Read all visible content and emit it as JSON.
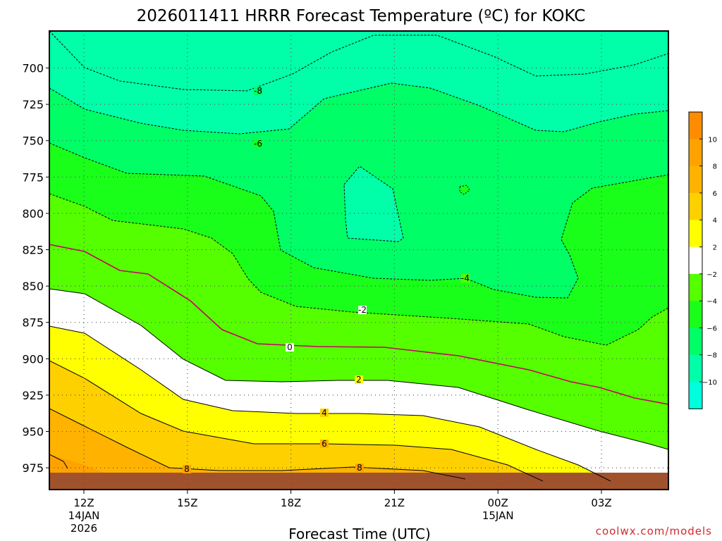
{
  "chart_data": {
    "type": "contour",
    "title": "2026011411 HRRR Forecast Temperature (ºC) for KOKC",
    "xlabel": "Forecast Time (UTC)",
    "ylabel": "",
    "credit": "coolwx.com/models",
    "y_axis": {
      "unit": "hPa",
      "inverted": true,
      "ticks": [
        "700",
        "725",
        "750",
        "775",
        "800",
        "825",
        "850",
        "875",
        "900",
        "925",
        "950",
        "975"
      ]
    },
    "x_axis": {
      "ticks": [
        {
          "label": "12Z",
          "sub1": "14JAN",
          "sub2": "2026"
        },
        {
          "label": "15Z",
          "sub1": "",
          "sub2": ""
        },
        {
          "label": "18Z",
          "sub1": "",
          "sub2": ""
        },
        {
          "label": "21Z",
          "sub1": "",
          "sub2": ""
        },
        {
          "label": "00Z",
          "sub1": "15JAN",
          "sub2": ""
        },
        {
          "label": "03Z",
          "sub1": "",
          "sub2": ""
        }
      ]
    },
    "grid": true,
    "colorbar": {
      "labels": [
        "10",
        "8",
        "6",
        "4",
        "2",
        "−2",
        "−4",
        "−6",
        "−8",
        "−10"
      ],
      "bands": [
        {
          "range": "10 to 12",
          "color": "#ff8c00"
        },
        {
          "range": "8 to 10",
          "color": "#ffa200"
        },
        {
          "range": "6 to 8",
          "color": "#ffb300"
        },
        {
          "range": "4 to 6",
          "color": "#ffd000"
        },
        {
          "range": "2 to 4",
          "color": "#ffff00"
        },
        {
          "range": "-2 to 2",
          "color": "#ffffff"
        },
        {
          "range": "-4 to -2",
          "color": "#55ff00"
        },
        {
          "range": "-6 to -4",
          "color": "#1aff1a"
        },
        {
          "range": "-8 to -6",
          "color": "#00ff66"
        },
        {
          "range": "-10 to -8",
          "color": "#00ffa8"
        },
        {
          "range": "-12 to -10",
          "color": "#00ffdd"
        }
      ]
    },
    "contour_labels": [
      "-8",
      "-6",
      "-4",
      "-2",
      "0",
      "2",
      "4",
      "6",
      "8"
    ],
    "ground_color": "#a0522d"
  }
}
